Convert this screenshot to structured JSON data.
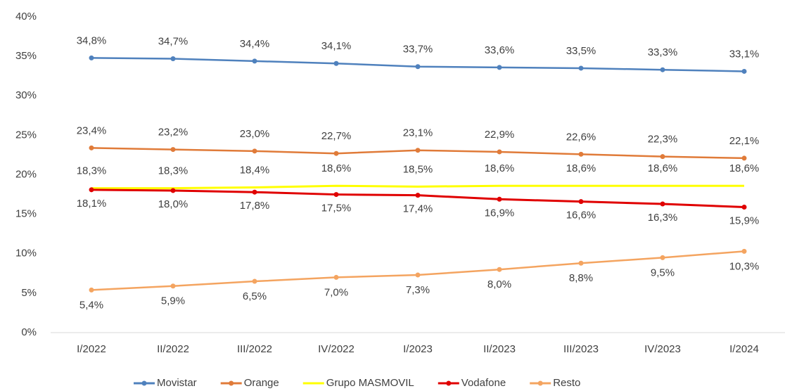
{
  "chart_data": {
    "type": "line",
    "categories": [
      "I/2022",
      "II/2022",
      "III/2022",
      "IV/2022",
      "I/2023",
      "II/2023",
      "III/2023",
      "IV/2023",
      "I/2024"
    ],
    "series": [
      {
        "name": "Movistar",
        "color": "#4f81bd",
        "values": [
          34.8,
          34.7,
          34.4,
          34.1,
          33.7,
          33.6,
          33.5,
          33.3,
          33.1
        ],
        "value_labels": [
          "34,8%",
          "34,7%",
          "34,4%",
          "34,1%",
          "33,7%",
          "33,6%",
          "33,5%",
          "33,3%",
          "33,1%"
        ]
      },
      {
        "name": "Orange",
        "color": "#e07b39",
        "values": [
          23.4,
          23.2,
          23.0,
          22.7,
          23.1,
          22.9,
          22.6,
          22.3,
          22.1
        ],
        "value_labels": [
          "23,4%",
          "23,2%",
          "23,0%",
          "22,7%",
          "23,1%",
          "22,9%",
          "22,6%",
          "22,3%",
          "22,1%"
        ]
      },
      {
        "name": "Grupo MASMOVIL",
        "color": "#ffff00",
        "values": [
          18.3,
          18.3,
          18.4,
          18.6,
          18.5,
          18.6,
          18.6,
          18.6,
          18.6
        ],
        "value_labels": [
          "18,3%",
          "18,3%",
          "18,4%",
          "18,6%",
          "18,5%",
          "18,6%",
          "18,6%",
          "18,6%",
          "18,6%"
        ]
      },
      {
        "name": "Vodafone",
        "color": "#e00000",
        "values": [
          18.1,
          18.0,
          17.8,
          17.5,
          17.4,
          16.9,
          16.6,
          16.3,
          15.9
        ],
        "value_labels": [
          "18,1%",
          "18,0%",
          "17,8%",
          "17,5%",
          "17,4%",
          "16,9%",
          "16,6%",
          "16,3%",
          "15,9%"
        ]
      },
      {
        "name": "Resto",
        "color": "#f4a460",
        "values": [
          5.4,
          5.9,
          6.5,
          7.0,
          7.3,
          8.0,
          8.8,
          9.5,
          10.3
        ],
        "value_labels": [
          "5,4%",
          "5,9%",
          "6,5%",
          "7,0%",
          "7,3%",
          "8,0%",
          "8,8%",
          "9,5%",
          "10,3%"
        ]
      }
    ],
    "ylim": [
      0,
      40
    ],
    "yticks": [
      {
        "value": 0,
        "label": "0%"
      },
      {
        "value": 5,
        "label": "5%"
      },
      {
        "value": 10,
        "label": "10%"
      },
      {
        "value": 15,
        "label": "15%"
      },
      {
        "value": 20,
        "label": "20%"
      },
      {
        "value": 25,
        "label": "25%"
      },
      {
        "value": 30,
        "label": "30%"
      },
      {
        "value": 35,
        "label": "35%"
      },
      {
        "value": 40,
        "label": "40%"
      }
    ]
  }
}
